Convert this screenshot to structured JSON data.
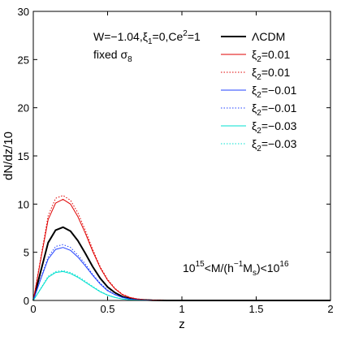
{
  "chart_data": {
    "type": "line",
    "title": "",
    "xlabel": "z",
    "ylabel": "dN/dz/10",
    "xlim": [
      0,
      2
    ],
    "ylim": [
      0,
      30
    ],
    "xticks": [
      0,
      0.5,
      1,
      1.5,
      2
    ],
    "xtick_labels": [
      "0",
      "0.5",
      "1",
      "1.5",
      "2"
    ],
    "yticks": [
      0,
      5,
      10,
      15,
      20,
      25,
      30
    ],
    "ytick_labels": [
      "0",
      "5",
      "10",
      "15",
      "20",
      "25",
      "30"
    ],
    "grid": false,
    "legend_position": "top-right",
    "annotations": {
      "params_line1": "W=−1.04,ξ",
      "params_sub1": "1",
      "params_line1b": "=0,Ce",
      "params_sup1": "2",
      "params_line1c": "=1",
      "params_line2": "fixed σ",
      "params_sub2": "8",
      "mass_range_a": "10",
      "mass_range_a_sup": "15",
      "mass_range_b": "<M/(h",
      "mass_range_b_sup": "−1",
      "mass_range_c": "M",
      "mass_range_c_sub": "s",
      "mass_range_d": ")<10",
      "mass_range_d_sup": "16"
    },
    "x": [
      0,
      0.05,
      0.1,
      0.15,
      0.2,
      0.25,
      0.3,
      0.35,
      0.4,
      0.45,
      0.5,
      0.55,
      0.6,
      0.65,
      0.7,
      0.75,
      0.8,
      0.9,
      1.0,
      1.2,
      1.5,
      2.0
    ],
    "series": [
      {
        "name": "ΛCDM",
        "color": "#000000",
        "style": "solid",
        "width": 2,
        "values": [
          0,
          3.0,
          6.0,
          7.3,
          7.6,
          7.2,
          6.2,
          4.9,
          3.5,
          2.3,
          1.4,
          0.8,
          0.4,
          0.2,
          0.1,
          0.05,
          0.02,
          0.0,
          0.0,
          0.0,
          0.0,
          0.0
        ]
      },
      {
        "name": "ξ2=0.01",
        "legend_main": "ξ",
        "legend_sub": "2",
        "legend_rest": "=0.01",
        "color": "#e00000",
        "style": "solid",
        "width": 1,
        "values": [
          0,
          4.2,
          8.4,
          10.1,
          10.5,
          10.0,
          8.7,
          7.0,
          5.1,
          3.4,
          2.1,
          1.2,
          0.6,
          0.3,
          0.15,
          0.07,
          0.03,
          0.0,
          0.0,
          0.0,
          0.0,
          0.0
        ]
      },
      {
        "name": "ξ2=0.01",
        "legend_main": "ξ",
        "legend_sub": "2",
        "legend_rest": "=0.01",
        "color": "#e00000",
        "style": "dotted",
        "width": 1,
        "values": [
          0,
          4.4,
          8.8,
          10.6,
          10.9,
          10.4,
          9.1,
          7.3,
          5.3,
          3.5,
          2.2,
          1.25,
          0.65,
          0.32,
          0.16,
          0.08,
          0.04,
          0.0,
          0.0,
          0.0,
          0.0,
          0.0
        ]
      },
      {
        "name": "ξ2=−0.01",
        "legend_main": "ξ",
        "legend_sub": "2",
        "legend_rest": "=−0.01",
        "color": "#2040ff",
        "style": "solid",
        "width": 1,
        "values": [
          0,
          2.2,
          4.3,
          5.3,
          5.5,
          5.2,
          4.5,
          3.6,
          2.6,
          1.7,
          1.0,
          0.6,
          0.3,
          0.15,
          0.07,
          0.03,
          0.01,
          0.0,
          0.0,
          0.0,
          0.0,
          0.0
        ]
      },
      {
        "name": "ξ2=−0.01",
        "legend_main": "ξ",
        "legend_sub": "2",
        "legend_rest": "=−0.01",
        "color": "#2040ff",
        "style": "dotted",
        "width": 1,
        "values": [
          0,
          2.3,
          4.5,
          5.6,
          5.8,
          5.5,
          4.7,
          3.8,
          2.7,
          1.8,
          1.1,
          0.63,
          0.32,
          0.16,
          0.08,
          0.04,
          0.01,
          0.0,
          0.0,
          0.0,
          0.0,
          0.0
        ]
      },
      {
        "name": "ξ2=−0.03",
        "legend_main": "ξ",
        "legend_sub": "2",
        "legend_rest": "=−0.03",
        "color": "#00e0d0",
        "style": "solid",
        "width": 1,
        "values": [
          0,
          1.2,
          2.4,
          2.9,
          3.0,
          2.8,
          2.4,
          1.9,
          1.4,
          0.9,
          0.55,
          0.3,
          0.15,
          0.07,
          0.03,
          0.01,
          0.0,
          0.0,
          0.0,
          0.0,
          0.0,
          0.0
        ]
      },
      {
        "name": "ξ2=−0.03",
        "legend_main": "ξ",
        "legend_sub": "2",
        "legend_rest": "=−0.03",
        "color": "#00e0d0",
        "style": "dotted",
        "width": 1,
        "values": [
          0,
          1.25,
          2.5,
          3.0,
          3.1,
          2.9,
          2.5,
          2.0,
          1.45,
          0.95,
          0.57,
          0.32,
          0.16,
          0.08,
          0.03,
          0.01,
          0.0,
          0.0,
          0.0,
          0.0,
          0.0,
          0.0
        ]
      }
    ]
  }
}
